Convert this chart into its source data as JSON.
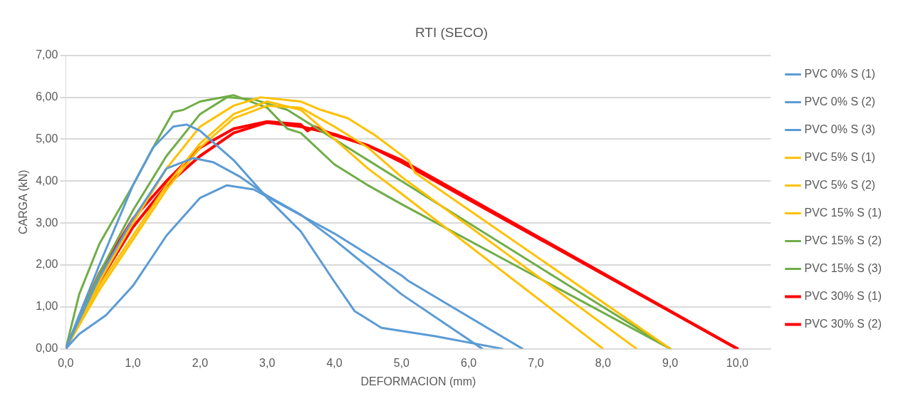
{
  "chart_data": {
    "type": "line",
    "title": "RTI (SECO)",
    "xlabel": "DEFORMACION (mm)",
    "ylabel": "CARGA (kN)",
    "xlim": [
      0,
      10.5
    ],
    "ylim": [
      0,
      7
    ],
    "xticks": [
      {
        "value": 0,
        "label": "0,0"
      },
      {
        "value": 1,
        "label": "1,0"
      },
      {
        "value": 2,
        "label": "2,0"
      },
      {
        "value": 3,
        "label": "3,0"
      },
      {
        "value": 4,
        "label": "4,0"
      },
      {
        "value": 5,
        "label": "5,0"
      },
      {
        "value": 6,
        "label": "6,0"
      },
      {
        "value": 7,
        "label": "7,0"
      },
      {
        "value": 8,
        "label": "8,0"
      },
      {
        "value": 9,
        "label": "9,0"
      },
      {
        "value": 10,
        "label": "10,0"
      }
    ],
    "yticks": [
      {
        "value": 0,
        "label": "0,00"
      },
      {
        "value": 1,
        "label": "1,00"
      },
      {
        "value": 2,
        "label": "2,00"
      },
      {
        "value": 3,
        "label": "3,00"
      },
      {
        "value": 4,
        "label": "4,00"
      },
      {
        "value": 5,
        "label": "5,00"
      },
      {
        "value": 6,
        "label": "6,00"
      },
      {
        "value": 7,
        "label": "7,00"
      }
    ],
    "grid": "y",
    "legend": "right",
    "marker": "none",
    "line_style": "solid",
    "series": [
      {
        "name": "PVC 0% S (1)",
        "color": "#5b9bd5",
        "x": [
          0,
          0.5,
          1.0,
          1.3,
          1.6,
          1.8,
          2.0,
          2.5,
          3.0,
          3.5,
          4.0,
          4.3,
          4.7,
          5.5,
          6.5
        ],
        "values": [
          0,
          2.0,
          3.9,
          4.8,
          5.3,
          5.35,
          5.2,
          4.5,
          3.6,
          2.8,
          1.6,
          0.9,
          0.5,
          0.3,
          0
        ]
      },
      {
        "name": "PVC 0% S (2)",
        "color": "#5b9bd5",
        "x": [
          0,
          0.5,
          1.0,
          1.5,
          1.9,
          2.2,
          2.6,
          3.0,
          3.5,
          4.0,
          5.0,
          6.2
        ],
        "values": [
          0,
          1.7,
          3.1,
          4.3,
          4.55,
          4.45,
          4.1,
          3.65,
          3.2,
          2.6,
          1.3,
          0
        ]
      },
      {
        "name": "PVC 0% S (3)",
        "color": "#5b9bd5",
        "x": [
          0,
          0.2,
          0.6,
          1.0,
          1.5,
          2.0,
          2.4,
          2.8,
          3.2,
          3.6,
          4.0,
          5.0,
          5.1,
          6.8
        ],
        "values": [
          0,
          0.35,
          0.8,
          1.5,
          2.7,
          3.6,
          3.9,
          3.8,
          3.45,
          3.1,
          2.75,
          1.75,
          1.62,
          0
        ]
      },
      {
        "name": "PVC 5% S (1)",
        "color": "#ffc000",
        "x": [
          0,
          0.5,
          1.0,
          1.5,
          2.0,
          2.5,
          3.0,
          3.5,
          4.0,
          4.5,
          5.0,
          8.0
        ],
        "values": [
          0,
          1.5,
          2.7,
          3.9,
          4.9,
          5.6,
          5.9,
          5.7,
          5.0,
          4.3,
          3.7,
          0
        ]
      },
      {
        "name": "PVC 5% S (2)",
        "color": "#ffc000",
        "x": [
          0,
          0.5,
          1.0,
          1.5,
          2.0,
          2.5,
          3.0,
          3.5,
          4.0,
          4.5,
          5.0,
          8.5
        ],
        "values": [
          0,
          1.4,
          2.6,
          3.8,
          4.8,
          5.5,
          5.8,
          5.75,
          5.3,
          4.8,
          4.1,
          0
        ]
      },
      {
        "name": "PVC 15% S (1)",
        "color": "#ffc000",
        "x": [
          0,
          0.5,
          1.0,
          1.5,
          2.0,
          2.5,
          2.9,
          3.5,
          3.8,
          4.2,
          4.6,
          5.1,
          5.2,
          9.0
        ],
        "values": [
          0,
          1.6,
          3.0,
          4.3,
          5.3,
          5.8,
          6.0,
          5.9,
          5.7,
          5.5,
          5.1,
          4.5,
          4.2,
          0
        ]
      },
      {
        "name": "PVC 15% S (2)",
        "color": "#70ad47",
        "x": [
          0,
          0.2,
          0.5,
          1.0,
          1.3,
          1.6,
          1.75,
          2.0,
          2.5,
          3.0,
          3.3,
          3.5,
          4.0,
          4.5,
          5.0,
          9.0
        ],
        "values": [
          0,
          1.3,
          2.5,
          3.9,
          4.8,
          5.65,
          5.7,
          5.9,
          6.05,
          5.75,
          5.25,
          5.15,
          4.4,
          3.9,
          3.45,
          0
        ]
      },
      {
        "name": "PVC 15% S (3)",
        "color": "#70ad47",
        "x": [
          0,
          0.5,
          1.0,
          1.5,
          2.0,
          2.4,
          2.8,
          3.3,
          3.6,
          4.0,
          4.5,
          5.0,
          9.0
        ],
        "values": [
          0,
          1.8,
          3.3,
          4.6,
          5.6,
          6.0,
          5.95,
          5.7,
          5.4,
          5.0,
          4.5,
          4.0,
          0
        ]
      },
      {
        "name": "PVC 30% S (1)",
        "color": "#ff0000",
        "x": [
          0,
          0.5,
          1.0,
          1.5,
          2.0,
          2.5,
          3.0,
          3.5,
          3.6,
          3.7,
          4.0,
          4.5,
          5.0,
          10.0
        ],
        "values": [
          0,
          1.8,
          3.1,
          4.0,
          4.8,
          5.25,
          5.42,
          5.35,
          5.2,
          5.3,
          5.1,
          4.85,
          4.5,
          0
        ]
      },
      {
        "name": "PVC 30% S (2)",
        "color": "#ff0000",
        "x": [
          0,
          0.5,
          1.0,
          1.5,
          2.0,
          2.5,
          3.0,
          3.5,
          4.0,
          4.5,
          5.0,
          10.0
        ],
        "values": [
          0,
          1.6,
          2.9,
          3.9,
          4.6,
          5.15,
          5.4,
          5.3,
          5.12,
          4.85,
          4.45,
          0
        ]
      }
    ]
  }
}
